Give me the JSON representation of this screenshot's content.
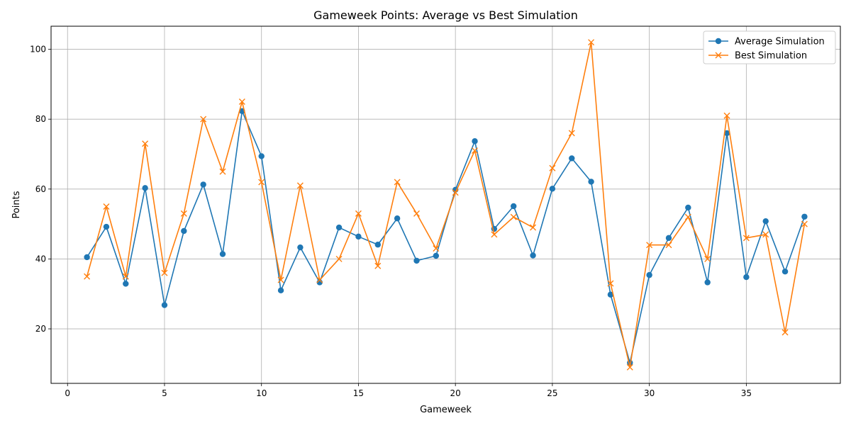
{
  "chart_data": {
    "type": "line",
    "title": "Gameweek Points: Average vs Best Simulation",
    "xlabel": "Gameweek",
    "ylabel": "Points",
    "xlim": [
      -0.85,
      39.85
    ],
    "ylim": [
      4.4,
      106.6
    ],
    "xticks": [
      0,
      5,
      10,
      15,
      20,
      25,
      30,
      35
    ],
    "yticks": [
      20,
      40,
      60,
      80,
      100
    ],
    "grid": true,
    "legend_position": "top-right",
    "x": [
      1,
      2,
      3,
      4,
      5,
      6,
      7,
      8,
      9,
      10,
      11,
      12,
      13,
      14,
      15,
      16,
      17,
      18,
      19,
      20,
      21,
      22,
      23,
      24,
      25,
      26,
      27,
      28,
      29,
      30,
      31,
      32,
      33,
      34,
      35,
      36,
      37,
      38
    ],
    "series": [
      {
        "name": "Average Simulation",
        "color": "#1f77b4",
        "marker": "circle",
        "values": [
          40.5,
          49.2,
          32.9,
          60.3,
          26.8,
          48.0,
          61.3,
          41.4,
          82.3,
          69.4,
          31.0,
          43.3,
          33.3,
          49.0,
          46.4,
          44.1,
          51.6,
          39.5,
          40.9,
          59.8,
          73.7,
          48.6,
          55.1,
          41.0,
          60.1,
          68.8,
          62.1,
          29.8,
          10.3,
          35.4,
          46.0,
          54.7,
          33.3,
          76.0,
          34.8,
          50.8,
          36.4,
          52.1
        ]
      },
      {
        "name": "Best Simulation",
        "color": "#ff7f0e",
        "marker": "x",
        "values": [
          35,
          55,
          35,
          73,
          36,
          53,
          80,
          65,
          85,
          62,
          34,
          61,
          34,
          40,
          53,
          38,
          62,
          53,
          43,
          59,
          71,
          47,
          52,
          49,
          66,
          76,
          102,
          33,
          9,
          44,
          44,
          52,
          40,
          81,
          46,
          47,
          19,
          50
        ]
      }
    ]
  }
}
